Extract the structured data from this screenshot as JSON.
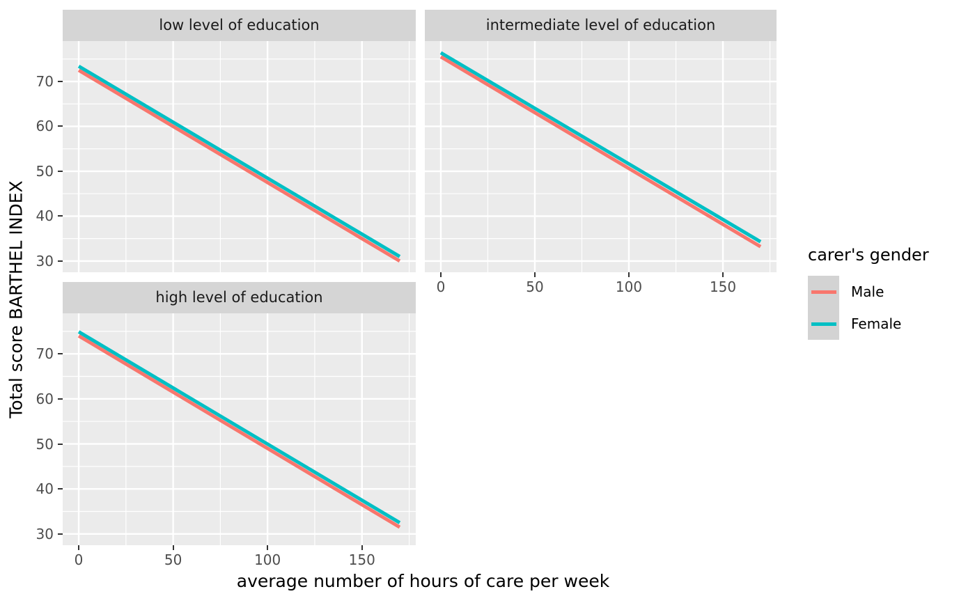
{
  "figure": {
    "x_axis_title": "average number of hours of care per week",
    "y_axis_title": "Total score BARTHEL INDEX"
  },
  "legend": {
    "title": "carer's gender",
    "items": [
      {
        "label": "Male",
        "color": "#F8766D"
      },
      {
        "label": "Female",
        "color": "#00BFC4"
      }
    ]
  },
  "colors": {
    "panel_bg": "#EBEBEB",
    "strip_bg": "#D5D5D5",
    "grid": "#FFFFFF",
    "tick_mark": "#333333",
    "tick_text": "#4D4D4D",
    "legend_key_bg": "#D3D3D3"
  },
  "chart_data": {
    "type": "line",
    "title": "",
    "xlabel": "average number of hours of care per week",
    "ylabel": "Total score BARTHEL INDEX",
    "legend_title": "carer's gender",
    "legend_position": "right",
    "grid": true,
    "x": [
      0,
      170
    ],
    "xlim": [
      -8.5,
      178.5
    ],
    "ylim": [
      27.5,
      79.0
    ],
    "x_ticks": [
      0,
      50,
      100,
      150
    ],
    "y_ticks": [
      30,
      40,
      50,
      60,
      70
    ],
    "x_minor_ticks": [
      25,
      75,
      125,
      175
    ],
    "y_minor_ticks": [
      35,
      45,
      55,
      65,
      75
    ],
    "facets": [
      {
        "label": "low level of education",
        "series": [
          {
            "name": "Male",
            "color": "#F8766D",
            "values": [
              72.5,
              30.0
            ]
          },
          {
            "name": "Female",
            "color": "#00BFC4",
            "values": [
              73.4,
              31.0
            ]
          }
        ]
      },
      {
        "label": "intermediate level of education",
        "series": [
          {
            "name": "Male",
            "color": "#F8766D",
            "values": [
              75.5,
              33.2
            ]
          },
          {
            "name": "Female",
            "color": "#00BFC4",
            "values": [
              76.4,
              34.3
            ]
          }
        ]
      },
      {
        "label": "high level of education",
        "series": [
          {
            "name": "Male",
            "color": "#F8766D",
            "values": [
              74.0,
              31.5
            ]
          },
          {
            "name": "Female",
            "color": "#00BFC4",
            "values": [
              74.9,
              32.5
            ]
          }
        ]
      }
    ]
  }
}
